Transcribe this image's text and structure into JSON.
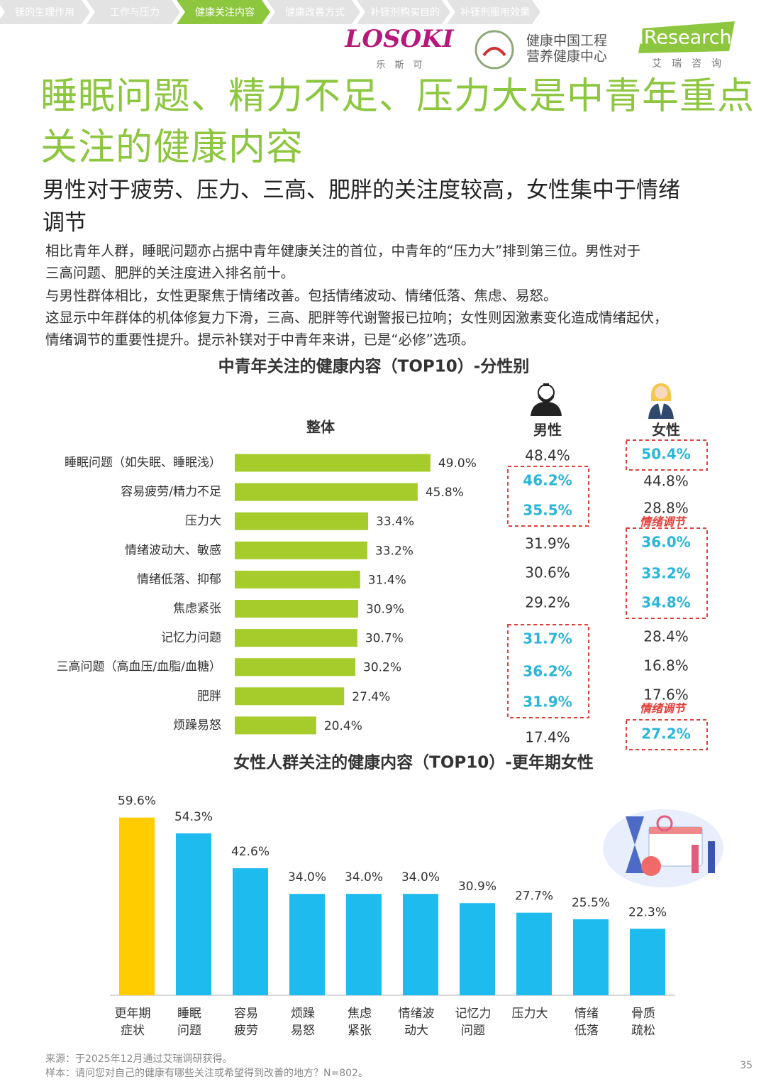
{
  "nav": [
    "镁的生理作用",
    "工作与压力",
    "健康关注内容",
    "健康改善方式",
    "补镁剂购买目的",
    "补镁剂服用效果"
  ],
  "nav_active": 2,
  "logos": {
    "losoki": "LOSOKI",
    "losoki_sub": "乐　斯　可",
    "center_1": "健康中国工程",
    "center_2": "营养健康中心",
    "iresearch": "iResearch",
    "iresearch_sub": "艾　瑞　咨　询"
  },
  "title": "睡眠问题、精力不足、压力大是中青年重点\n关注的健康内容",
  "subtitle": "男性对于疲劳、压力、三高、肥胖的关注度较高，女性集中于情绪\n调节",
  "paragraphs": [
    "相比青年人群，睡眠问题亦占据中青年健康关注的首位，中青年的“压力大”排到第三位。男性对于\n三高问题、肥胖的关注度进入排名前十。",
    "与男性群体相比，女性更聚焦于情绪改善。包括情绪波动、情绪低落、焦虑、易怒。",
    "这显示中年群体的机体修复力下滑，三高、肥胖等代谢警报已拉响；女性则因激素变化造成情绪起伏，\n情绪调节的重要性提升。提示补镁对于中青年来讲，已是“必修”选项。"
  ],
  "chart_data": [
    {
      "type": "hbar",
      "title": "中青年关注的健康内容（TOP10）-分性别",
      "overall_label": "整体",
      "color": "#A6CC2C",
      "categories": [
        "睡眠问题（如失眠、睡眠浅）",
        "容易疲劳/精力不足",
        "压力大",
        "情绪波动大、敏感",
        "情绪低落、抑郁",
        "焦虑紧张",
        "记忆力问题",
        "三高问题（高血压/血脂/血糖）",
        "肥胖",
        "烦躁易怒"
      ],
      "values": [
        49.0,
        45.8,
        33.4,
        33.2,
        31.4,
        30.9,
        30.7,
        30.2,
        27.4,
        20.4
      ],
      "value_labels": [
        "49.0%",
        "45.8%",
        "33.4%",
        "33.2%",
        "31.4%",
        "30.9%",
        "30.7%",
        "30.2%",
        "27.4%",
        "20.4%"
      ],
      "highlight_color": "#2BB5D8",
      "box_color": "#E0403A",
      "columns": [
        {
          "name": "男性",
          "labels": [
            "48.4%",
            "46.2%",
            "35.5%",
            "31.9%",
            "30.6%",
            "29.2%",
            "31.7%",
            "36.2%",
            "31.9%",
            "17.4%"
          ],
          "highlight_groups": [
            [
              1,
              2
            ],
            [
              6,
              8
            ]
          ],
          "notes": []
        },
        {
          "name": "女性",
          "labels": [
            "50.4%",
            "44.8%",
            "28.8%",
            "36.0%",
            "33.2%",
            "34.8%",
            "28.4%",
            "16.8%",
            "17.6%",
            "27.2%"
          ],
          "highlight_groups": [
            [
              0,
              0
            ],
            [
              3,
              5
            ],
            [
              9,
              9
            ]
          ],
          "notes": [
            {
              "row": 2,
              "text": "情绪调节"
            },
            {
              "row": 8,
              "text": "情绪调节"
            }
          ]
        }
      ]
    },
    {
      "type": "bar",
      "title": "女性人群关注的健康内容（TOP10）-更年期女性",
      "categories": [
        "更年期\n症状",
        "睡眠\n问题",
        "容易\n疲劳",
        "烦躁\n易怒",
        "焦虑\n紧张",
        "情绪波\n动大",
        "记忆力\n问题",
        "压力大",
        "情绪\n低落",
        "骨质\n疏松"
      ],
      "values": [
        59.6,
        54.3,
        42.6,
        34.0,
        34.0,
        34.0,
        30.9,
        27.7,
        25.5,
        22.3
      ],
      "value_labels": [
        "59.6%",
        "54.3%",
        "42.6%",
        "34.0%",
        "34.0%",
        "34.0%",
        "30.9%",
        "27.7%",
        "25.5%",
        "22.3%"
      ],
      "colors": [
        "#FFCC00",
        "#1EBBEE",
        "#1EBBEE",
        "#1EBBEE",
        "#1EBBEE",
        "#1EBBEE",
        "#1EBBEE",
        "#1EBBEE",
        "#1EBBEE",
        "#1EBBEE"
      ]
    }
  ],
  "footer": {
    "source": "来源：于2025年12月通过艾瑞调研获得。",
    "sample": "样本：请问您对自己的健康有哪些关注或希望得到改善的地方？N=802。",
    "page": "35"
  }
}
